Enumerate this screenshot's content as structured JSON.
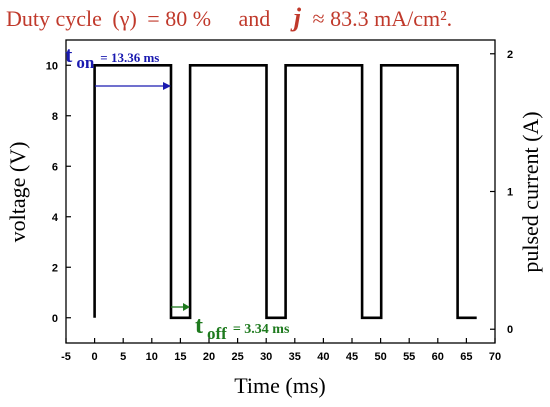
{
  "header": {
    "duty_label": "Duty cycle",
    "duty_gamma": "(γ)",
    "duty_value": "= 80 %",
    "and_word": "and",
    "j_symbol": "j",
    "j_value": "≈ 83.3 mA/cm²."
  },
  "colors": {
    "header_text": "#c0392b",
    "ton_color": "#1a1ab0",
    "toff_color": "#1e7a1e",
    "line_color": "#000000",
    "background": "#ffffff"
  },
  "annotations": {
    "ton": {
      "t": "t",
      "sub": "on",
      "value": "= 13.36 ms"
    },
    "toff": {
      "t": "t",
      "sub": "off",
      "value": "= 3.34 ms"
    }
  },
  "chart_data": {
    "type": "line",
    "title": "",
    "xlabel": "Time (ms)",
    "ylabel": "voltage (V)",
    "y2label": "pulsed current (A)",
    "xlim": [
      -5,
      70
    ],
    "ylim": [
      -1,
      11
    ],
    "y2lim": [
      -0.1,
      2.1
    ],
    "x_ticks": [
      -5,
      0,
      5,
      10,
      15,
      20,
      25,
      30,
      35,
      40,
      45,
      50,
      55,
      60,
      65,
      70
    ],
    "y_ticks": [
      0,
      2,
      4,
      6,
      8,
      10
    ],
    "y2_ticks": [
      0,
      1,
      2
    ],
    "grid": false,
    "series": [
      {
        "x": [
          0,
          0,
          13.36,
          13.36,
          16.7,
          16.7,
          30.06,
          30.06,
          33.4,
          33.4,
          46.76,
          46.76,
          50.1,
          50.1,
          63.46,
          63.46,
          66.8
        ],
        "values": [
          0,
          10,
          10,
          0,
          0,
          10,
          10,
          0,
          0,
          10,
          10,
          0,
          0,
          10,
          10,
          0,
          0
        ]
      }
    ]
  }
}
